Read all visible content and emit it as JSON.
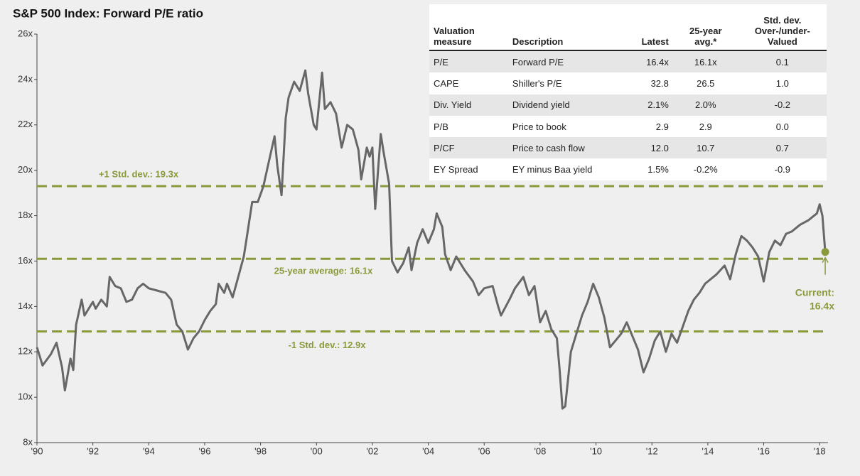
{
  "chart_data": {
    "type": "line",
    "title": "S&P 500 Index: Forward P/E ratio",
    "xlim": [
      1990,
      2018.3
    ],
    "ylim": [
      8,
      26
    ],
    "xticks": [
      {
        "value": 1990,
        "label": "'90"
      },
      {
        "value": 1992,
        "label": "'92"
      },
      {
        "value": 1994,
        "label": "'94"
      },
      {
        "value": 1996,
        "label": "'96"
      },
      {
        "value": 1998,
        "label": "'98"
      },
      {
        "value": 2000,
        "label": "'00"
      },
      {
        "value": 2002,
        "label": "'02"
      },
      {
        "value": 2004,
        "label": "'04"
      },
      {
        "value": 2006,
        "label": "'06"
      },
      {
        "value": 2008,
        "label": "'08"
      },
      {
        "value": 2010,
        "label": "'10"
      },
      {
        "value": 2012,
        "label": "'12"
      },
      {
        "value": 2014,
        "label": "'14"
      },
      {
        "value": 2016,
        "label": "'16"
      },
      {
        "value": 2018,
        "label": "'18"
      }
    ],
    "yticks": [
      {
        "value": 8,
        "label": "8x"
      },
      {
        "value": 10,
        "label": "10x"
      },
      {
        "value": 12,
        "label": "12x"
      },
      {
        "value": 14,
        "label": "14x"
      },
      {
        "value": 16,
        "label": "16x"
      },
      {
        "value": 18,
        "label": "18x"
      },
      {
        "value": 20,
        "label": "20x"
      },
      {
        "value": 22,
        "label": "22x"
      },
      {
        "value": 24,
        "label": "24x"
      },
      {
        "value": 26,
        "label": "26x"
      }
    ],
    "color": "#676767",
    "reference_color": "#8a9a3a",
    "x": [
      1990.0,
      1990.2,
      1990.5,
      1990.7,
      1990.9,
      1991.0,
      1991.2,
      1991.3,
      1991.4,
      1991.6,
      1991.7,
      1992.0,
      1992.1,
      1992.3,
      1992.5,
      1992.6,
      1992.8,
      1993.0,
      1993.2,
      1993.4,
      1993.6,
      1993.8,
      1994.0,
      1994.3,
      1994.6,
      1994.8,
      1995.0,
      1995.2,
      1995.4,
      1995.6,
      1995.8,
      1996.0,
      1996.2,
      1996.4,
      1996.5,
      1996.7,
      1996.8,
      1997.0,
      1997.2,
      1997.4,
      1997.5,
      1997.7,
      1997.9,
      1998.1,
      1998.3,
      1998.5,
      1998.6,
      1998.75,
      1998.9,
      1999.0,
      1999.2,
      1999.4,
      1999.6,
      1999.7,
      1999.9,
      2000.0,
      2000.2,
      2000.3,
      2000.5,
      2000.7,
      2000.9,
      2001.1,
      2001.3,
      2001.5,
      2001.6,
      2001.8,
      2001.9,
      2002.0,
      2002.1,
      2002.3,
      2002.4,
      2002.6,
      2002.7,
      2002.9,
      2003.1,
      2003.3,
      2003.4,
      2003.6,
      2003.8,
      2004.0,
      2004.2,
      2004.3,
      2004.5,
      2004.6,
      2004.8,
      2005.0,
      2005.3,
      2005.6,
      2005.8,
      2006.0,
      2006.3,
      2006.5,
      2006.6,
      2006.9,
      2007.1,
      2007.4,
      2007.6,
      2007.8,
      2008.0,
      2008.2,
      2008.4,
      2008.6,
      2008.7,
      2008.8,
      2008.9,
      2009.1,
      2009.3,
      2009.5,
      2009.7,
      2009.9,
      2010.1,
      2010.3,
      2010.5,
      2010.7,
      2010.9,
      2011.1,
      2011.3,
      2011.5,
      2011.7,
      2011.9,
      2012.1,
      2012.3,
      2012.5,
      2012.7,
      2012.9,
      2013.1,
      2013.3,
      2013.5,
      2013.7,
      2013.9,
      2014.1,
      2014.3,
      2014.6,
      2014.8,
      2015.0,
      2015.2,
      2015.4,
      2015.6,
      2015.8,
      2016.0,
      2016.2,
      2016.4,
      2016.6,
      2016.8,
      2017.0,
      2017.3,
      2017.6,
      2017.9,
      2018.0,
      2018.1,
      2018.2
    ],
    "values": [
      12.2,
      11.4,
      11.9,
      12.4,
      11.3,
      10.3,
      11.7,
      11.2,
      13.2,
      14.3,
      13.6,
      14.2,
      13.9,
      14.3,
      14.0,
      15.3,
      14.9,
      14.8,
      14.2,
      14.3,
      14.8,
      15.0,
      14.8,
      14.7,
      14.6,
      14.3,
      13.2,
      12.9,
      12.1,
      12.6,
      12.9,
      13.4,
      13.8,
      14.1,
      15.0,
      14.6,
      15.0,
      14.4,
      15.3,
      16.2,
      17.0,
      18.6,
      18.6,
      19.3,
      20.4,
      21.5,
      20.2,
      18.9,
      22.3,
      23.2,
      23.9,
      23.5,
      24.4,
      23.4,
      22.0,
      21.8,
      24.3,
      22.7,
      23.0,
      22.5,
      21.0,
      22.0,
      21.8,
      20.9,
      19.6,
      21.0,
      20.6,
      21.0,
      18.3,
      21.6,
      20.8,
      19.4,
      16.0,
      15.5,
      15.9,
      16.6,
      15.6,
      16.8,
      17.4,
      16.8,
      17.4,
      18.1,
      17.5,
      16.3,
      15.6,
      16.2,
      15.6,
      15.1,
      14.5,
      14.8,
      14.9,
      14.0,
      13.6,
      14.3,
      14.8,
      15.3,
      14.5,
      14.9,
      13.3,
      13.8,
      13.0,
      12.6,
      11.2,
      9.5,
      9.6,
      12.0,
      12.8,
      13.6,
      14.2,
      15.0,
      14.4,
      13.5,
      12.2,
      12.5,
      12.8,
      13.3,
      12.7,
      12.1,
      11.1,
      11.7,
      12.5,
      12.9,
      12.0,
      12.8,
      12.4,
      13.1,
      13.8,
      14.3,
      14.6,
      15.0,
      15.2,
      15.4,
      15.8,
      15.2,
      16.3,
      17.1,
      16.9,
      16.6,
      16.2,
      15.1,
      16.4,
      16.9,
      16.7,
      17.2,
      17.3,
      17.6,
      17.8,
      18.1,
      18.5,
      18.0,
      16.4
    ],
    "reference_lines": [
      {
        "value": 19.3,
        "label": "+1 Std. dev.: 19.3x"
      },
      {
        "value": 16.1,
        "label": "25-year average: 16.1x"
      },
      {
        "value": 12.9,
        "label": "-1 Std. dev.: 12.9x"
      }
    ],
    "current": {
      "x": 2018.2,
      "value": 16.4,
      "label": [
        "Current:",
        "16.4x"
      ]
    }
  },
  "table": {
    "header": [
      [
        "Valuation",
        "measure"
      ],
      [
        "Description"
      ],
      [
        "Latest"
      ],
      [
        "25-year",
        "avg.*"
      ],
      [
        "Std. dev.",
        "Over-/under-",
        "Valued"
      ]
    ],
    "rows": [
      [
        "P/E",
        "Forward P/E",
        "16.4x",
        "16.1x",
        "0.1"
      ],
      [
        "CAPE",
        "Shiller's P/E",
        "32.8",
        "26.5",
        "1.0"
      ],
      [
        "Div. Yield",
        "Dividend yield",
        "2.1%",
        "2.0%",
        "-0.2"
      ],
      [
        "P/B",
        "Price to book",
        "2.9",
        "2.9",
        "0.0"
      ],
      [
        "P/CF",
        "Price to cash flow",
        "12.0",
        "10.7",
        "0.7"
      ],
      [
        "EY Spread",
        "EY minus Baa yield",
        "1.5%",
        "-0.2%",
        "-0.9"
      ]
    ]
  }
}
